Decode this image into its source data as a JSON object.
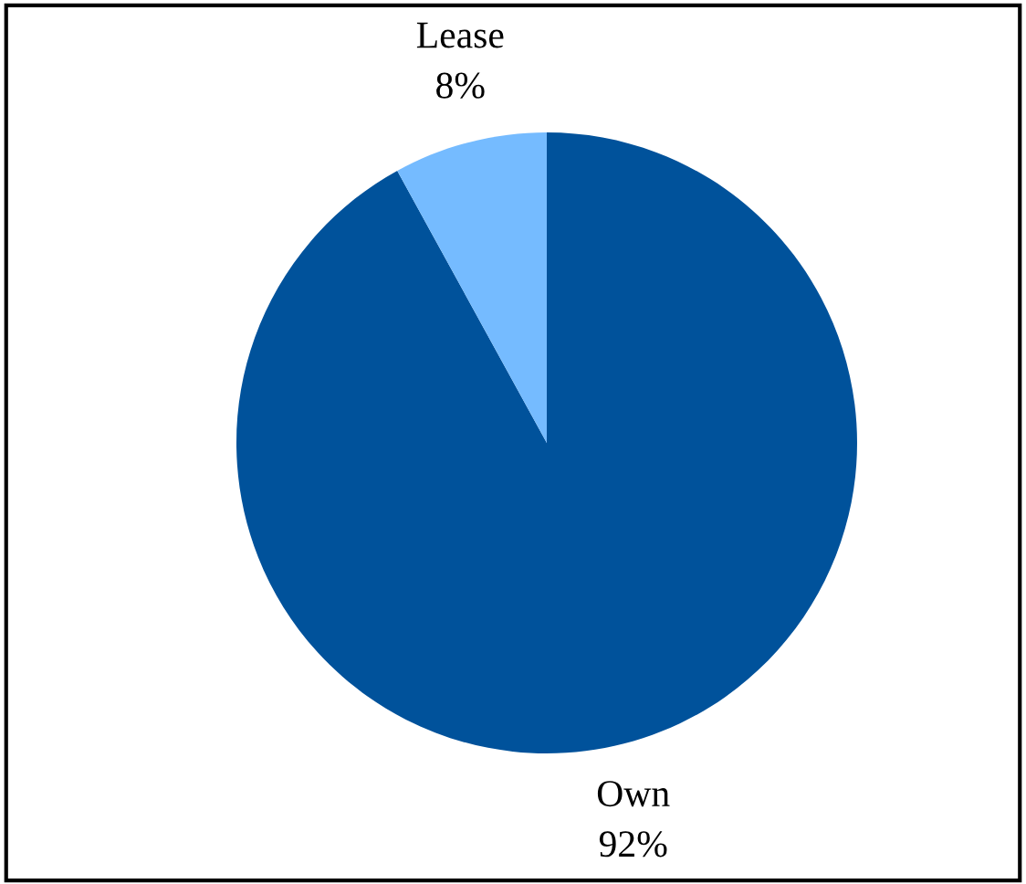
{
  "chart_data": {
    "type": "pie",
    "categories": [
      "Own",
      "Lease"
    ],
    "values": [
      92,
      8
    ],
    "value_labels": [
      "92%",
      "8%"
    ],
    "colors": [
      "#00529b",
      "#75bbff"
    ],
    "legend": false
  }
}
